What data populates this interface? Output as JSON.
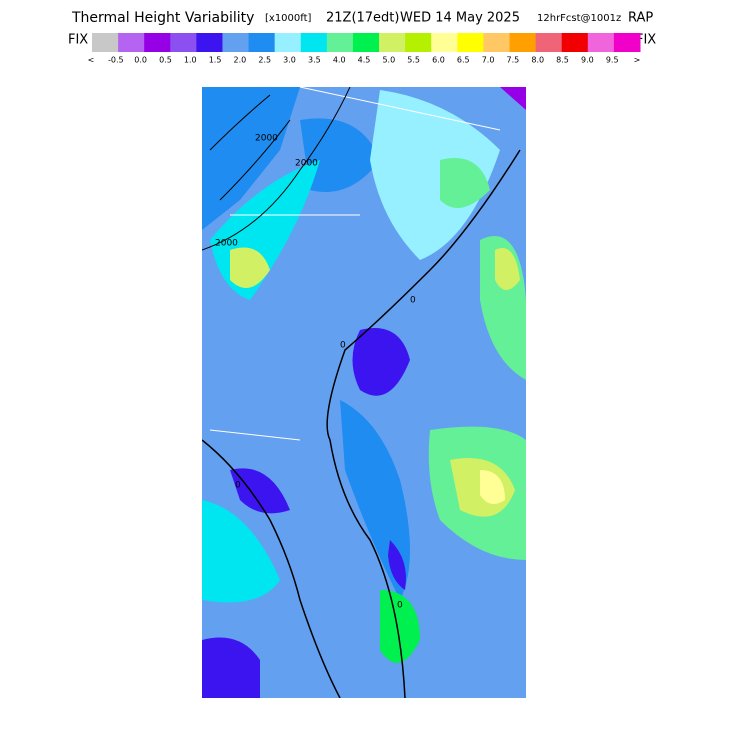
{
  "header": {
    "title": "Thermal Height Variability",
    "units": "[x1000ft]",
    "valid_time": "21Z(17edt)",
    "date": "WED 14 May 2025",
    "forecast": "12hrFcst@1001z",
    "model": "RAP"
  },
  "colorbar": {
    "left_label": "FIX",
    "right_label": "FIX",
    "colors": [
      "#c8c8c8",
      "#b464f0",
      "#9600e6",
      "#8c50f0",
      "#3c14f0",
      "#64a0f0",
      "#1e8cf0",
      "#96f0ff",
      "#00e6f0",
      "#64f096",
      "#00f050",
      "#d2f064",
      "#b4f000",
      "#ffff96",
      "#ffff00",
      "#ffc864",
      "#ffa000",
      "#f06478",
      "#f00000",
      "#f064dc",
      "#f000c8"
    ],
    "labels": [
      "<",
      "-0.5",
      "0.0",
      "0.5",
      "1.0",
      "1.5",
      "2.0",
      "2.5",
      "3.0",
      "3.5",
      "4.0",
      "4.5",
      "5.0",
      "5.5",
      "6.0",
      "6.5",
      "7.0",
      "7.5",
      "8.0",
      "8.5",
      "9.0",
      "9.5",
      ">"
    ]
  },
  "map": {
    "contour_labels": [
      "2000",
      "2000",
      "2000",
      "0",
      "0",
      "0",
      "0"
    ]
  }
}
